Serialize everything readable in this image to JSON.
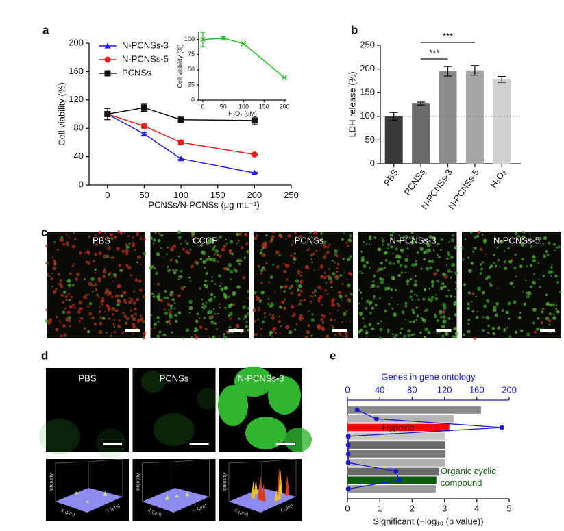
{
  "chart_data": [
    {
      "panel": "a",
      "type": "line",
      "xlabel": "PCNSs/N-PCNSs (μg mL⁻¹)",
      "ylabel": "Cell viability (%)",
      "x": [
        0,
        50,
        100,
        200
      ],
      "series": [
        {
          "name": "N-PCNSs-3",
          "color": "#1f1fe0",
          "marker": "triangle",
          "values": [
            100,
            72,
            37,
            17
          ],
          "errors": [
            0,
            2,
            1,
            1
          ]
        },
        {
          "name": "N-PCNSs-5",
          "color": "#ee1c1c",
          "marker": "circle",
          "values": [
            100,
            83,
            60,
            43
          ],
          "errors": [
            3,
            3,
            3,
            0
          ]
        },
        {
          "name": "PCNSs",
          "color": "#111111",
          "marker": "square",
          "values": [
            100,
            109,
            92,
            91
          ],
          "errors": [
            8,
            5,
            3,
            6
          ]
        }
      ],
      "xlim": [
        -25,
        250
      ],
      "xticks": [
        0,
        50,
        100,
        150,
        200,
        250
      ],
      "ylim": [
        0,
        200
      ],
      "yticks": [
        0,
        40,
        80,
        120,
        160,
        200
      ],
      "legend": "upper left"
    },
    {
      "type": "line",
      "xlabel": "H₂O₂ (μM)",
      "ylabel": "Cell viability (%)",
      "x": [
        0,
        50,
        100,
        200
      ],
      "series": [
        {
          "color": "#22bb22",
          "marker": "x",
          "values": [
            100,
            102,
            93,
            37
          ],
          "errors": [
            12,
            3,
            0,
            0
          ]
        }
      ],
      "xlim": [
        -10,
        205
      ],
      "xticks": [
        0,
        50,
        100,
        150,
        200
      ],
      "ylim": [
        0,
        112
      ],
      "yticks": [
        0,
        25,
        50,
        75,
        100
      ]
    },
    {
      "panel": "b",
      "type": "bar",
      "ylabel": "LDH release (%)",
      "categories": [
        "PBS",
        "PCNSs",
        "N-PCNSs-3",
        "N-PCNSs-5",
        "H₂O₂"
      ],
      "values": [
        100,
        127,
        195,
        197,
        178
      ],
      "errors": [
        8,
        3,
        10,
        10,
        6
      ],
      "colors": [
        "#3a3a3a",
        "#6b6b6b",
        "#8c8c8c",
        "#a6a6a6",
        "#d0d0d0"
      ],
      "ylim": [
        0,
        250
      ],
      "yticks": [
        0,
        50,
        100,
        150,
        200,
        250
      ],
      "reference_line": 100,
      "annotations": [
        "***",
        "***"
      ]
    },
    {
      "panel": "e",
      "type": "hbar",
      "xlabel": "Significant (−log₁₀ (p value))",
      "x2label": "Genes in gene ontology",
      "categories": [
        null,
        null,
        "Hypoxia",
        null,
        null,
        null,
        null,
        null,
        "Organic cyclic compound",
        null
      ],
      "values": [
        4.13,
        3.28,
        3.15,
        3.03,
        3.03,
        3.03,
        3.03,
        2.84,
        2.75,
        2.73
      ],
      "colors": [
        "#8a8a8a",
        "#b4b4b4",
        "#ff0000",
        "#c8c8c8",
        "#6a6a6a",
        "#7a7a7a",
        "#b0b0b0",
        "#6a6a6a",
        "#0b5e0b",
        "#9a9a9a"
      ],
      "xlim": [
        0,
        5
      ],
      "xticks": [
        0,
        1,
        2,
        3,
        4,
        5
      ],
      "x2lim": [
        0,
        200
      ],
      "x2ticks": [
        0,
        40,
        80,
        120,
        160,
        200
      ],
      "line": {
        "color": "#1a1acc",
        "values": [
          12,
          36,
          191,
          1,
          1,
          1,
          1,
          60,
          64,
          1
        ]
      }
    }
  ],
  "panel_c": {
    "panel": "c",
    "images": [
      "PBS",
      "CCCP",
      "PCNSs",
      "N-PCNSs-3",
      "N-PCNSs-5"
    ]
  },
  "panel_d": {
    "panel": "d",
    "images": [
      "PBS",
      "PCNSs",
      "N-PCNSs-3"
    ],
    "surface_axes": [
      "Intensity",
      "X (μm)",
      "Y (μm)"
    ]
  }
}
